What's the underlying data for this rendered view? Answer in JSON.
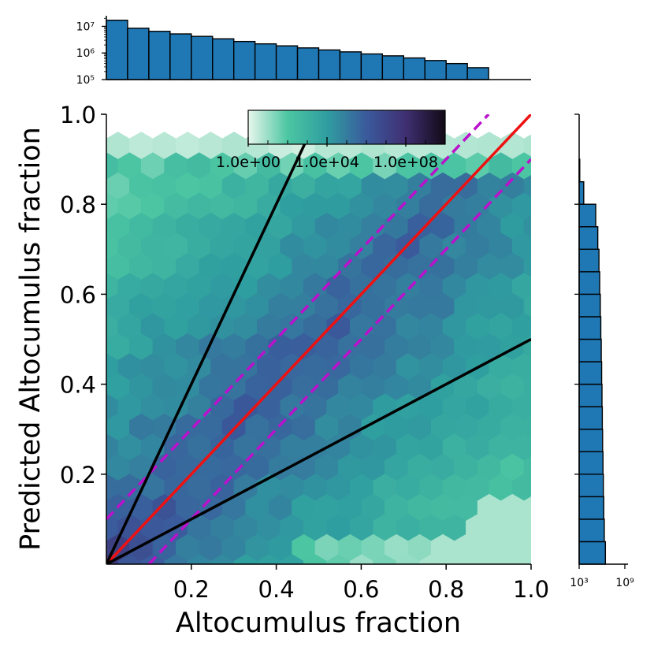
{
  "chart_data": [
    {
      "panel": "main",
      "type": "heatmap",
      "subtype": "hexbin",
      "xlabel": "Altocumulus fraction",
      "ylabel": "Predicted Altocumulus fraction",
      "xlim": [
        0,
        1
      ],
      "ylim": [
        0,
        1
      ],
      "x_ticks": [
        0.2,
        0.4,
        0.6,
        0.8,
        1.0
      ],
      "x_tick_labels": [
        "0.2",
        "0.4",
        "0.6",
        "0.8",
        "1.0"
      ],
      "y_ticks": [
        0.2,
        0.4,
        0.6,
        0.8,
        1.0
      ],
      "y_tick_labels": [
        "0.2",
        "0.4",
        "0.6",
        "0.8",
        "1.0"
      ],
      "grid": false,
      "colormap": [
        "#e8f6ec",
        "#4cc6a2",
        "#2f9ea0",
        "#3a5a9c",
        "#3f2f72",
        "#120a16"
      ],
      "colorbar": {
        "scale": "log",
        "range": [
          1,
          10000000000.0
        ],
        "ticks": [
          "1.0e+00",
          "1.0e+04",
          "1.0e+08"
        ],
        "placement": "top-center inset"
      },
      "lines": [
        {
          "role": "one-to-one",
          "color": "#ee1111",
          "style": "solid",
          "points": [
            [
              0,
              0
            ],
            [
              1,
              1
            ]
          ]
        },
        {
          "role": "upper-offset",
          "color": "#bb11cc",
          "style": "dashed",
          "points": [
            [
              0,
              0.1
            ],
            [
              0.9,
              1.0
            ]
          ]
        },
        {
          "role": "lower-offset",
          "color": "#bb11cc",
          "style": "dashed",
          "points": [
            [
              0.1,
              0
            ],
            [
              1.0,
              0.9
            ]
          ]
        },
        {
          "role": "steep",
          "color": "#000000",
          "style": "solid",
          "points": [
            [
              0,
              0
            ],
            [
              0.5,
              1.0
            ]
          ]
        },
        {
          "role": "shallow",
          "color": "#000000",
          "style": "solid",
          "points": [
            [
              0,
              0
            ],
            [
              1.0,
              0.5
            ]
          ]
        }
      ]
    },
    {
      "panel": "top-marginal",
      "type": "bar",
      "subtype": "histogram",
      "x_range": [
        0,
        1
      ],
      "bin_width": 0.05,
      "yscale": "log",
      "ylim": [
        100000.0,
        25000000.0
      ],
      "y_tick_labels": [
        "10⁵",
        "10⁶",
        "10⁷"
      ],
      "color": "#1f77b4",
      "values": [
        17000000,
        8500000,
        6500000,
        5200000,
        4200000,
        3400000,
        2700000,
        2200000,
        1850000,
        1550000,
        1300000,
        1100000,
        920000,
        780000,
        650000,
        520000,
        400000,
        280000,
        100000,
        100000
      ]
    },
    {
      "panel": "right-marginal",
      "type": "bar",
      "subtype": "histogram",
      "orientation": "horizontal",
      "y_range": [
        0,
        1
      ],
      "bin_width": 0.05,
      "xscale": "log",
      "xlim": [
        1000,
        1000000000.0
      ],
      "x_tick_labels": [
        "10³",
        "10⁹"
      ],
      "color": "#1f77b4",
      "values": [
        2800000,
        2000000,
        1700000,
        1500000,
        1350000,
        1200000,
        1100000,
        1000000,
        900000,
        800000,
        700000,
        600000,
        500000,
        400000,
        280000,
        150000,
        4000,
        1200
      ]
    }
  ]
}
